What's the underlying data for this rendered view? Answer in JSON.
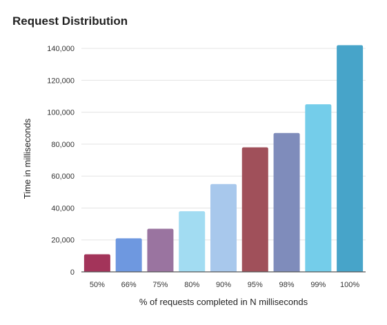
{
  "chart_data": {
    "type": "bar",
    "title": "Request Distribution",
    "xlabel": "% of requests completed in N milliseconds",
    "ylabel": "Time in milliseconds",
    "categories": [
      "50%",
      "66%",
      "75%",
      "80%",
      "90%",
      "95%",
      "98%",
      "99%",
      "100%"
    ],
    "values": [
      11000,
      21000,
      27000,
      38000,
      55000,
      78000,
      87000,
      105000,
      142000
    ],
    "colors": [
      "#a3345a",
      "#6e98e0",
      "#9a74a0",
      "#a2dcf2",
      "#a8c8ec",
      "#a0505a",
      "#7f8cbb",
      "#74cdea",
      "#47a4c9"
    ],
    "ylim": [
      0,
      150000
    ],
    "yticks": [
      0,
      20000,
      40000,
      60000,
      80000,
      100000,
      120000,
      140000
    ],
    "ytick_labels": [
      "0",
      "20,000",
      "40,000",
      "60,000",
      "80,000",
      "100,000",
      "120,000",
      "140,000"
    ],
    "grid": true,
    "legend": "none"
  }
}
